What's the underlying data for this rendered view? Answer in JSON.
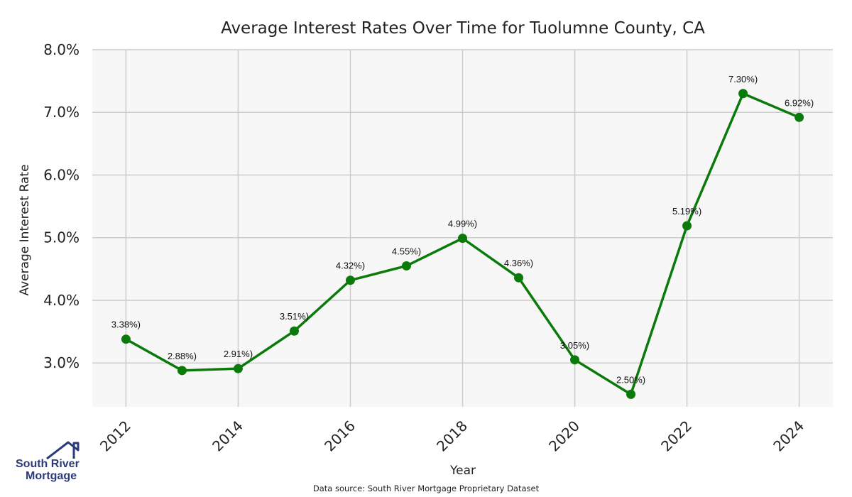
{
  "chart_data": {
    "type": "line",
    "title": "Average Interest Rates Over Time for Tuolumne County, CA",
    "xlabel": "Year",
    "ylabel": "Average Interest Rate",
    "x": [
      2012,
      2013,
      2014,
      2015,
      2016,
      2017,
      2018,
      2019,
      2020,
      2021,
      2022,
      2023,
      2024
    ],
    "values": [
      3.38,
      2.88,
      2.91,
      3.51,
      4.32,
      4.55,
      4.99,
      4.36,
      3.05,
      2.5,
      5.19,
      7.3,
      6.92
    ],
    "data_labels": [
      "3.38%)",
      "2.88%)",
      "2.91%)",
      "3.51%)",
      "4.32%)",
      "4.55%)",
      "4.99%)",
      "4.36%)",
      "3.05%)",
      "2.50%)",
      "5.19%)",
      "7.30%)",
      "6.92%)"
    ],
    "xticks": [
      "2012",
      "2014",
      "2016",
      "2018",
      "2020",
      "2022",
      "2024"
    ],
    "yticks": [
      "3.0%",
      "4.0%",
      "5.0%",
      "6.0%",
      "7.0%",
      "8.0%"
    ],
    "ylim": [
      2.3,
      8.0
    ],
    "xlim": [
      2011.4,
      2024.6
    ],
    "grid": true,
    "line_color": "#0a7a0a",
    "background": "#f7f7f7",
    "grid_color": "#cccccc"
  },
  "footer": {
    "source": "Data source: South River Mortgage Proprietary Dataset"
  },
  "logo": {
    "line1": "South River",
    "line2": "Mortgage",
    "color": "#2b3a78",
    "icon": "house-roof-icon"
  }
}
